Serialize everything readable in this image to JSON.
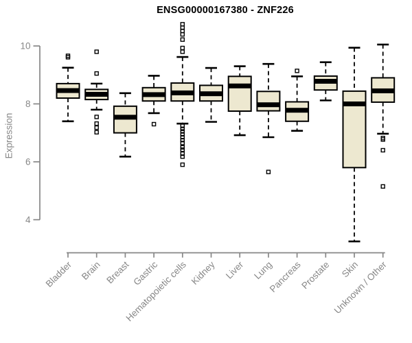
{
  "colors": {
    "box_fill": "#EDE8D0",
    "box_stroke": "#000000",
    "median": "#000000",
    "axis": "#878787",
    "title_text": "#000000",
    "background": "#FFFFFF"
  },
  "chart_data": {
    "type": "boxplot",
    "title": "ENSG00000167380 - ZNF226",
    "xlabel": "",
    "ylabel": "Expression",
    "ylim": [
      3.2,
      10.8
    ],
    "yticks": [
      4,
      6,
      8,
      10
    ],
    "grid": false,
    "legend": false,
    "categories": [
      "Bladder",
      "Brain",
      "Breast",
      "Gastric",
      "Hematopoietic cells",
      "Kidney",
      "Liver",
      "Lung",
      "Pancreas",
      "Prostate",
      "Skin",
      "Unknown / Other"
    ],
    "series": [
      {
        "name": "Bladder",
        "whisker_low": 7.4,
        "q1": 8.2,
        "median": 8.46,
        "q3": 8.7,
        "whisker_high": 9.25,
        "outliers": [
          9.66,
          9.61
        ]
      },
      {
        "name": "Brain",
        "whisker_low": 7.8,
        "q1": 8.15,
        "median": 8.33,
        "q3": 8.5,
        "whisker_high": 8.7,
        "outliers": [
          9.8,
          9.05,
          7.55,
          7.32,
          7.18,
          7.02
        ]
      },
      {
        "name": "Breast",
        "whisker_low": 6.18,
        "q1": 7.0,
        "median": 7.54,
        "q3": 7.92,
        "whisker_high": 8.37,
        "outliers": []
      },
      {
        "name": "Gastric",
        "whisker_low": 7.68,
        "q1": 8.1,
        "median": 8.32,
        "q3": 8.56,
        "whisker_high": 8.97,
        "outliers": [
          7.3
        ]
      },
      {
        "name": "Hematopoietic cells",
        "whisker_low": 7.32,
        "q1": 8.1,
        "median": 8.38,
        "q3": 8.72,
        "whisker_high": 9.62,
        "outliers": [
          10.75,
          10.63,
          10.52,
          10.4,
          10.22,
          9.93,
          9.8,
          7.24,
          7.14,
          7.05,
          6.95,
          6.85,
          6.75,
          6.65,
          6.5,
          6.42,
          6.28,
          6.18,
          5.9
        ]
      },
      {
        "name": "Kidney",
        "whisker_low": 7.38,
        "q1": 8.1,
        "median": 8.35,
        "q3": 8.64,
        "whisker_high": 9.24,
        "outliers": []
      },
      {
        "name": "Liver",
        "whisker_low": 6.92,
        "q1": 7.75,
        "median": 8.62,
        "q3": 8.95,
        "whisker_high": 9.3,
        "outliers": []
      },
      {
        "name": "Lung",
        "whisker_low": 6.85,
        "q1": 7.76,
        "median": 7.97,
        "q3": 8.43,
        "whisker_high": 9.38,
        "outliers": [
          5.65
        ]
      },
      {
        "name": "Pancreas",
        "whisker_low": 7.07,
        "q1": 7.4,
        "median": 7.78,
        "q3": 8.07,
        "whisker_high": 8.95,
        "outliers": [
          9.14
        ]
      },
      {
        "name": "Prostate",
        "whisker_low": 8.12,
        "q1": 8.48,
        "median": 8.78,
        "q3": 8.96,
        "whisker_high": 9.44,
        "outliers": []
      },
      {
        "name": "Skin",
        "whisker_low": 3.25,
        "q1": 5.8,
        "median": 8.0,
        "q3": 8.44,
        "whisker_high": 9.94,
        "outliers": []
      },
      {
        "name": "Unknown / Other",
        "whisker_low": 6.97,
        "q1": 8.06,
        "median": 8.45,
        "q3": 8.9,
        "whisker_high": 10.05,
        "outliers": [
          6.82,
          6.77,
          6.4,
          5.15
        ]
      }
    ]
  }
}
